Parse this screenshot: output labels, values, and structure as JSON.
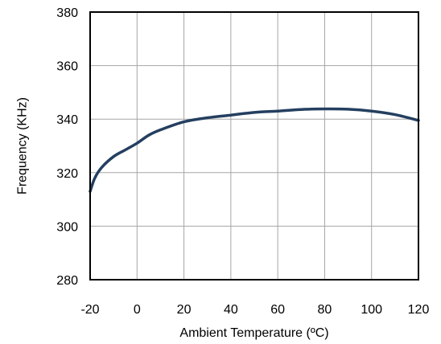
{
  "chart_data": {
    "type": "line",
    "title": "",
    "xlabel": "Ambient Temperature (ºC)",
    "ylabel": "Frequency (KHz)",
    "xlim": [
      -20,
      120
    ],
    "ylim": [
      280,
      380
    ],
    "xticks": [
      -20,
      0,
      20,
      40,
      60,
      80,
      100,
      120
    ],
    "yticks": [
      280,
      300,
      320,
      340,
      360,
      380
    ],
    "xtick_labels": [
      "-20",
      "0",
      "20",
      "40",
      "60",
      "80",
      "100",
      "120"
    ],
    "ytick_labels": [
      "280",
      "300",
      "320",
      "340",
      "360",
      "380"
    ],
    "grid": true,
    "legend": "none",
    "series": [
      {
        "color": "#243f60",
        "x": [
          -20,
          -18,
          -15,
          -10,
          -5,
          0,
          5,
          10,
          20,
          30,
          40,
          50,
          60,
          70,
          80,
          90,
          100,
          110,
          120
        ],
        "y": [
          313,
          318,
          322,
          326,
          328.5,
          331,
          334,
          336,
          339,
          340.5,
          341.5,
          342.5,
          343,
          343.6,
          343.8,
          343.7,
          343,
          341.7,
          339.5
        ]
      }
    ]
  }
}
